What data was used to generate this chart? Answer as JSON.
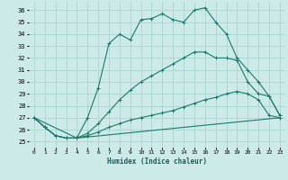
{
  "xlabel": "Humidex (Indice chaleur)",
  "background_color": "#cceae7",
  "grid_color": "#aad4d0",
  "line_color": "#1a7a6e",
  "xlim": [
    -0.5,
    23.5
  ],
  "ylim": [
    24.5,
    36.7
  ],
  "yticks": [
    25,
    26,
    27,
    28,
    29,
    30,
    31,
    32,
    33,
    34,
    35,
    36
  ],
  "xticks": [
    0,
    1,
    2,
    3,
    4,
    5,
    6,
    7,
    8,
    9,
    10,
    11,
    12,
    13,
    14,
    15,
    16,
    17,
    18,
    19,
    20,
    21,
    22,
    23
  ],
  "series": [
    {
      "x": [
        0,
        1,
        2,
        3,
        4,
        5,
        6,
        7,
        8,
        9,
        10,
        11,
        12,
        13,
        14,
        15,
        16,
        17,
        18,
        19,
        20,
        21,
        22,
        23
      ],
      "y": [
        27,
        26.2,
        25.5,
        25.3,
        25.3,
        27.0,
        29.5,
        33.2,
        34.0,
        33.5,
        35.2,
        35.3,
        35.7,
        35.2,
        35.0,
        36.0,
        36.2,
        35.0,
        34.0,
        32.0,
        31.0,
        30.0,
        28.8,
        27.2
      ],
      "markers": true
    },
    {
      "x": [
        0,
        1,
        2,
        3,
        4,
        5,
        6,
        7,
        8,
        9,
        10,
        11,
        12,
        13,
        14,
        15,
        16,
        17,
        18,
        19,
        20,
        21,
        22,
        23
      ],
      "y": [
        27,
        26.2,
        25.5,
        25.3,
        25.3,
        25.7,
        26.5,
        27.5,
        28.5,
        29.3,
        30.0,
        30.5,
        31.0,
        31.5,
        32.0,
        32.5,
        32.5,
        32.0,
        32.0,
        31.8,
        30.0,
        29.0,
        28.8,
        27.2
      ],
      "markers": true
    },
    {
      "x": [
        0,
        1,
        2,
        3,
        4,
        5,
        6,
        7,
        8,
        9,
        10,
        11,
        12,
        13,
        14,
        15,
        16,
        17,
        18,
        19,
        20,
        21,
        22,
        23
      ],
      "y": [
        27,
        26.2,
        25.5,
        25.3,
        25.3,
        25.5,
        25.8,
        26.2,
        26.5,
        26.8,
        27.0,
        27.2,
        27.4,
        27.6,
        27.9,
        28.2,
        28.5,
        28.7,
        29.0,
        29.2,
        29.0,
        28.5,
        27.2,
        27.0
      ],
      "markers": true
    },
    {
      "x": [
        0,
        4,
        23
      ],
      "y": [
        27,
        25.3,
        27.0
      ],
      "markers": false
    }
  ]
}
